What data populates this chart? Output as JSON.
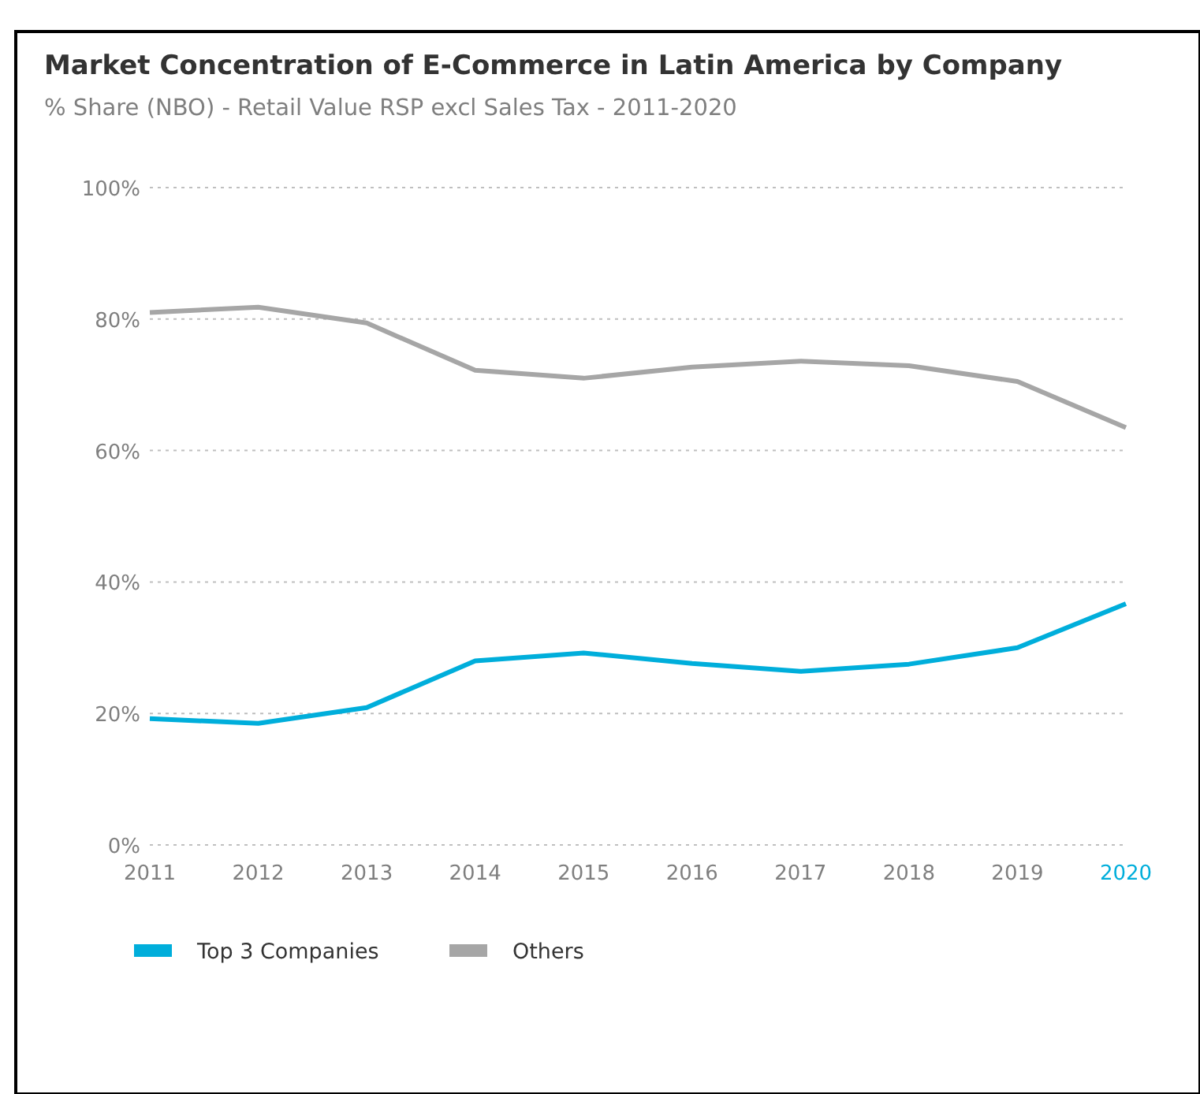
{
  "chart_data": {
    "type": "line",
    "title": "Market Concentration of E-Commerce in Latin America by Company",
    "subtitle": "% Share (NBO) - Retail Value RSP excl Sales Tax - 2011-2020",
    "categories": [
      "2011",
      "2012",
      "2013",
      "2014",
      "2015",
      "2016",
      "2017",
      "2018",
      "2019",
      "2020"
    ],
    "series": [
      {
        "name": "Top 3 Companies",
        "color": "#00aedb",
        "values": [
          19.2,
          18.5,
          20.9,
          28,
          29.2,
          27.6,
          26.4,
          27.5,
          30,
          36.7
        ]
      },
      {
        "name": "Others",
        "color": "#a6a6a6",
        "values": [
          81,
          81.8,
          79.4,
          72.2,
          71,
          72.7,
          73.6,
          72.9,
          70.5,
          63.5
        ]
      }
    ],
    "ylim": [
      0,
      100
    ],
    "yticks": [
      {
        "value": 0,
        "label": "0%"
      },
      {
        "value": 20,
        "label": "20%"
      },
      {
        "value": 40,
        "label": "40%"
      },
      {
        "value": 60,
        "label": "60%"
      },
      {
        "value": 80,
        "label": "80%"
      },
      {
        "value": 100,
        "label": "100%"
      }
    ],
    "grid": "y",
    "legend": "bottom",
    "marker": "none",
    "line_style": "solid"
  }
}
